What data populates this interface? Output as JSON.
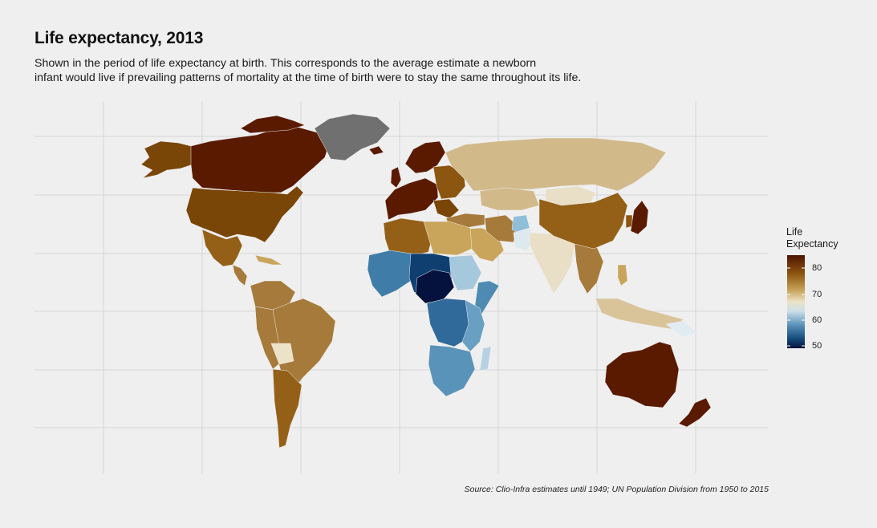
{
  "title": "Life expectancy, 2013",
  "subtitle_lines": [
    "Shown in the period of life expectancy at birth. This corresponds to the average estimate a newborn",
    "infant would live if prevailing patterns of mortality at the time of birth were to stay the same throughout its life."
  ],
  "legend": {
    "title_lines": [
      "Life",
      "Expectancy"
    ],
    "ticks": [
      "80",
      "70",
      "60",
      "50"
    ],
    "colors": [
      "#5a1a00",
      "#8c5510",
      "#c8a45a",
      "#ece2c8",
      "#c9dde6",
      "#5a93b9",
      "#14497a",
      "#07184a"
    ]
  },
  "caption": "Source: Clio-Infra estimates until 1949; UN Population Division from 1950 to 2015",
  "colors": {
    "background": "#efefef",
    "grid": "#d6d6d6",
    "no_data": "#707070"
  }
}
